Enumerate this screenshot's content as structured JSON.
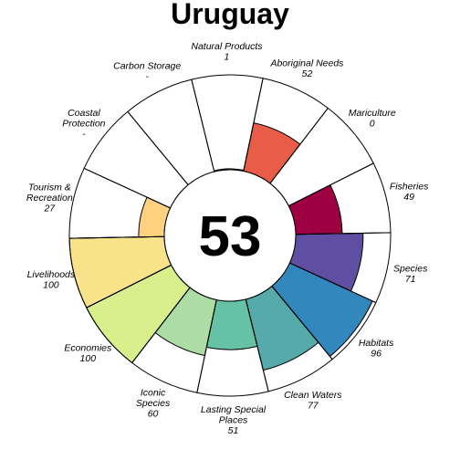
{
  "chart_data": {
    "type": "polar-bar",
    "title": "Uruguay",
    "center_score": "53",
    "max_score": 100,
    "goals": [
      {
        "name": [
          "Natural Products"
        ],
        "score_text": "1",
        "value": 1,
        "color": "#ffffff"
      },
      {
        "name": [
          "Aboriginal Needs"
        ],
        "score_text": "52",
        "value": 52,
        "color": "#e95c47"
      },
      {
        "name": [
          "Mariculture"
        ],
        "score_text": "0",
        "value": 0,
        "color": "#ffffff"
      },
      {
        "name": [
          "Fisheries"
        ],
        "score_text": "49",
        "value": 49,
        "color": "#9e0142"
      },
      {
        "name": [
          "Species"
        ],
        "score_text": "71",
        "value": 71,
        "color": "#5e4fa2"
      },
      {
        "name": [
          "Habitats"
        ],
        "score_text": "96",
        "value": 96,
        "color": "#3288bd"
      },
      {
        "name": [
          "Clean Waters"
        ],
        "score_text": "77",
        "value": 77,
        "color": "#56abaa"
      },
      {
        "name": [
          "Lasting Special",
          "Places"
        ],
        "score_text": "51",
        "value": 51,
        "color": "#66c2a5"
      },
      {
        "name": [
          "Iconic",
          "Species"
        ],
        "score_text": "60",
        "value": 60,
        "color": "#abdda4"
      },
      {
        "name": [
          "Economies"
        ],
        "score_text": "100",
        "value": 100,
        "color": "#d9ef8b"
      },
      {
        "name": [
          "Livelihoods"
        ],
        "score_text": "100",
        "value": 100,
        "color": "#f8e38b"
      },
      {
        "name": [
          "Tourism &",
          "Recreation"
        ],
        "score_text": "27",
        "value": 27,
        "color": "#fdd17f"
      },
      {
        "name": [
          "Coastal",
          "Protection"
        ],
        "score_text": "-",
        "value": null,
        "color": "#ffffff"
      },
      {
        "name": [
          "Carbon Storage"
        ],
        "score_text": "-",
        "value": null,
        "color": "#ffffff"
      }
    ]
  }
}
